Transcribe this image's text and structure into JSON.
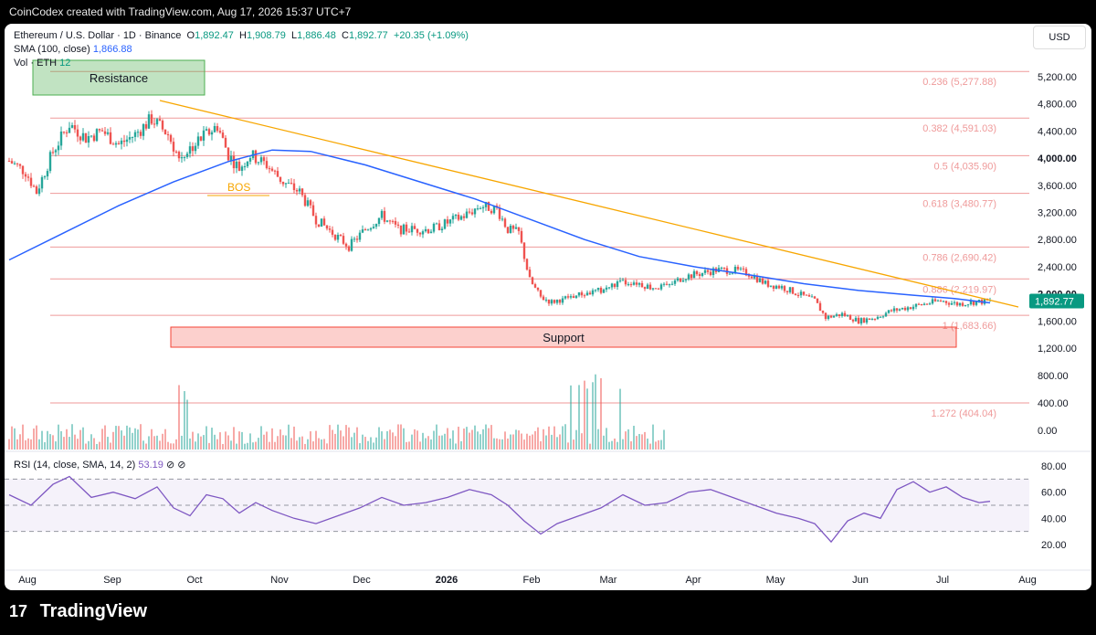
{
  "header": {
    "created_by": "CoinCodex created with TradingView.com, Aug 17, 2026 15:37 UTC+7"
  },
  "legend": {
    "symbol": "Ethereum / U.S. Dollar · 1D · Binance",
    "open_label": "O",
    "open": "1,892.47",
    "high_label": "H",
    "high": "1,908.79",
    "low_label": "L",
    "low": "1,886.48",
    "close_label": "C",
    "close": "1,892.77",
    "change": "+20.35 (+1.09%)",
    "sma_label": "SMA (100, close)",
    "sma_value": "1,866.88",
    "vol_label": "Vol · ETH",
    "vol_value": "12"
  },
  "currency_button": "USD",
  "rsi_legend": {
    "label": "RSI (14, close, SMA, 14, 2)",
    "value": "53.19"
  },
  "brand": {
    "logo_text": "17",
    "name": "TradingView"
  },
  "colors": {
    "up": "#26a69a",
    "down": "#ef5350",
    "sma": "#2962ff",
    "trendline": "#f7a600",
    "fib": "#ef9a9a",
    "rsi": "#7e57c2",
    "resistance": "#4caf50",
    "support": "#f44336"
  },
  "chart_data": [
    {
      "type": "candlestick",
      "title": "Ethereum / U.S. Dollar",
      "x_axis_labels": [
        "Aug",
        "Sep",
        "Oct",
        "Nov",
        "Dec",
        "2026",
        "Feb",
        "Mar",
        "Apr",
        "May",
        "Jun",
        "Jul",
        "Aug"
      ],
      "y_tick_labels": [
        "5,200.00",
        "4,800.00",
        "4,400.00",
        "4,000.00",
        "3,600.00",
        "3,200.00",
        "2,800.00",
        "2,400.00",
        "2,000.00",
        "1,600.00",
        "1,200.00",
        "800.00",
        "400.00",
        "0.00"
      ],
      "y_range": [
        0,
        5400
      ],
      "last_price": "1,892.77",
      "fib_levels": [
        {
          "label": "0.236 (5,277.88)",
          "value": 5277.88
        },
        {
          "label": "0.382 (4,591.03)",
          "value": 4591.03
        },
        {
          "label": "0.5 (4,035.90)",
          "value": 4035.9
        },
        {
          "label": "0.618 (3,480.77)",
          "value": 3480.77
        },
        {
          "label": "0.786 (2,690.42)",
          "value": 2690.42
        },
        {
          "label": "0.886 (2,219.97)",
          "value": 2219.97
        },
        {
          "label": "1 (1,683.66)",
          "value": 1683.66
        },
        {
          "label": "1.272 (404.04)",
          "value": 404.04
        }
      ],
      "annotations": [
        {
          "label": "Resistance",
          "kind": "zone",
          "from": 4850,
          "to": 5400
        },
        {
          "label": "Support",
          "kind": "zone",
          "from": 1200,
          "to": 1490
        },
        {
          "label": "BOS",
          "kind": "level",
          "value": 3460
        }
      ],
      "trendline": {
        "from": [
          "Sep 21",
          4850
        ],
        "to": [
          "Aug 15",
          1800
        ]
      },
      "price_series": [
        {
          "t": 0,
          "c": 3960
        },
        {
          "t": 6,
          "c": 3800
        },
        {
          "t": 10,
          "c": 3500
        },
        {
          "t": 16,
          "c": 4100
        },
        {
          "t": 22,
          "c": 4500
        },
        {
          "t": 28,
          "c": 4300
        },
        {
          "t": 34,
          "c": 4400
        },
        {
          "t": 40,
          "c": 4200
        },
        {
          "t": 46,
          "c": 4350
        },
        {
          "t": 52,
          "c": 4580
        },
        {
          "t": 58,
          "c": 4350
        },
        {
          "t": 62,
          "c": 4000
        },
        {
          "t": 66,
          "c": 4150
        },
        {
          "t": 72,
          "c": 4350
        },
        {
          "t": 76,
          "c": 4480
        },
        {
          "t": 80,
          "c": 4050
        },
        {
          "t": 84,
          "c": 3850
        },
        {
          "t": 88,
          "c": 4050
        },
        {
          "t": 94,
          "c": 3900
        },
        {
          "t": 100,
          "c": 3650
        },
        {
          "t": 106,
          "c": 3500
        },
        {
          "t": 112,
          "c": 3100
        },
        {
          "t": 118,
          "c": 2900
        },
        {
          "t": 124,
          "c": 2700
        },
        {
          "t": 130,
          "c": 2950
        },
        {
          "t": 136,
          "c": 3150
        },
        {
          "t": 142,
          "c": 2950
        },
        {
          "t": 148,
          "c": 2950
        },
        {
          "t": 154,
          "c": 2950
        },
        {
          "t": 160,
          "c": 3050
        },
        {
          "t": 166,
          "c": 3150
        },
        {
          "t": 172,
          "c": 3300
        },
        {
          "t": 178,
          "c": 3250
        },
        {
          "t": 182,
          "c": 2950
        },
        {
          "t": 186,
          "c": 2900
        },
        {
          "t": 190,
          "c": 2200
        },
        {
          "t": 194,
          "c": 1950
        },
        {
          "t": 198,
          "c": 1880
        },
        {
          "t": 204,
          "c": 1950
        },
        {
          "t": 210,
          "c": 2000
        },
        {
          "t": 216,
          "c": 2050
        },
        {
          "t": 222,
          "c": 2150
        },
        {
          "t": 228,
          "c": 2180
        },
        {
          "t": 234,
          "c": 2100
        },
        {
          "t": 240,
          "c": 2100
        },
        {
          "t": 246,
          "c": 2250
        },
        {
          "t": 252,
          "c": 2300
        },
        {
          "t": 258,
          "c": 2350
        },
        {
          "t": 264,
          "c": 2350
        },
        {
          "t": 270,
          "c": 2300
        },
        {
          "t": 276,
          "c": 2150
        },
        {
          "t": 282,
          "c": 2100
        },
        {
          "t": 288,
          "c": 2000
        },
        {
          "t": 294,
          "c": 1900
        },
        {
          "t": 298,
          "c": 1650
        },
        {
          "t": 304,
          "c": 1700
        },
        {
          "t": 310,
          "c": 1600
        },
        {
          "t": 316,
          "c": 1650
        },
        {
          "t": 322,
          "c": 1750
        },
        {
          "t": 328,
          "c": 1800
        },
        {
          "t": 334,
          "c": 1850
        },
        {
          "t": 340,
          "c": 1900
        },
        {
          "t": 346,
          "c": 1850
        },
        {
          "t": 352,
          "c": 1880
        },
        {
          "t": 358,
          "c": 1893
        }
      ],
      "sma_series": [
        {
          "t": 0,
          "v": 2500
        },
        {
          "t": 20,
          "v": 2900
        },
        {
          "t": 40,
          "v": 3300
        },
        {
          "t": 60,
          "v": 3650
        },
        {
          "t": 80,
          "v": 3950
        },
        {
          "t": 96,
          "v": 4120
        },
        {
          "t": 110,
          "v": 4100
        },
        {
          "t": 130,
          "v": 3900
        },
        {
          "t": 150,
          "v": 3650
        },
        {
          "t": 170,
          "v": 3400
        },
        {
          "t": 190,
          "v": 3100
        },
        {
          "t": 210,
          "v": 2800
        },
        {
          "t": 230,
          "v": 2550
        },
        {
          "t": 250,
          "v": 2400
        },
        {
          "t": 270,
          "v": 2280
        },
        {
          "t": 290,
          "v": 2150
        },
        {
          "t": 310,
          "v": 2050
        },
        {
          "t": 330,
          "v": 1980
        },
        {
          "t": 345,
          "v": 1930
        },
        {
          "t": 358,
          "v": 1867
        }
      ]
    },
    {
      "type": "line",
      "title": "RSI (14, close, SMA, 14, 2)",
      "y_tick_labels": [
        "80.00",
        "60.00",
        "40.00",
        "20.00"
      ],
      "y_range": [
        10,
        85
      ],
      "bands": [
        30,
        50,
        70
      ],
      "last_value": "53.19",
      "series": [
        {
          "t": 0,
          "v": 58
        },
        {
          "t": 8,
          "v": 50
        },
        {
          "t": 16,
          "v": 66
        },
        {
          "t": 22,
          "v": 72
        },
        {
          "t": 30,
          "v": 56
        },
        {
          "t": 38,
          "v": 60
        },
        {
          "t": 46,
          "v": 55
        },
        {
          "t": 54,
          "v": 64
        },
        {
          "t": 60,
          "v": 48
        },
        {
          "t": 66,
          "v": 42
        },
        {
          "t": 72,
          "v": 58
        },
        {
          "t": 78,
          "v": 55
        },
        {
          "t": 84,
          "v": 44
        },
        {
          "t": 90,
          "v": 52
        },
        {
          "t": 96,
          "v": 46
        },
        {
          "t": 104,
          "v": 40
        },
        {
          "t": 112,
          "v": 36
        },
        {
          "t": 120,
          "v": 42
        },
        {
          "t": 128,
          "v": 48
        },
        {
          "t": 136,
          "v": 56
        },
        {
          "t": 144,
          "v": 50
        },
        {
          "t": 152,
          "v": 52
        },
        {
          "t": 160,
          "v": 56
        },
        {
          "t": 168,
          "v": 62
        },
        {
          "t": 176,
          "v": 58
        },
        {
          "t": 182,
          "v": 50
        },
        {
          "t": 188,
          "v": 38
        },
        {
          "t": 194,
          "v": 28
        },
        {
          "t": 200,
          "v": 36
        },
        {
          "t": 208,
          "v": 42
        },
        {
          "t": 216,
          "v": 48
        },
        {
          "t": 224,
          "v": 58
        },
        {
          "t": 232,
          "v": 50
        },
        {
          "t": 240,
          "v": 52
        },
        {
          "t": 248,
          "v": 60
        },
        {
          "t": 256,
          "v": 62
        },
        {
          "t": 264,
          "v": 56
        },
        {
          "t": 272,
          "v": 50
        },
        {
          "t": 280,
          "v": 44
        },
        {
          "t": 288,
          "v": 40
        },
        {
          "t": 294,
          "v": 36
        },
        {
          "t": 300,
          "v": 22
        },
        {
          "t": 306,
          "v": 38
        },
        {
          "t": 312,
          "v": 44
        },
        {
          "t": 318,
          "v": 40
        },
        {
          "t": 324,
          "v": 62
        },
        {
          "t": 330,
          "v": 68
        },
        {
          "t": 336,
          "v": 60
        },
        {
          "t": 342,
          "v": 64
        },
        {
          "t": 348,
          "v": 56
        },
        {
          "t": 354,
          "v": 52
        },
        {
          "t": 358,
          "v": 53
        }
      ]
    }
  ]
}
